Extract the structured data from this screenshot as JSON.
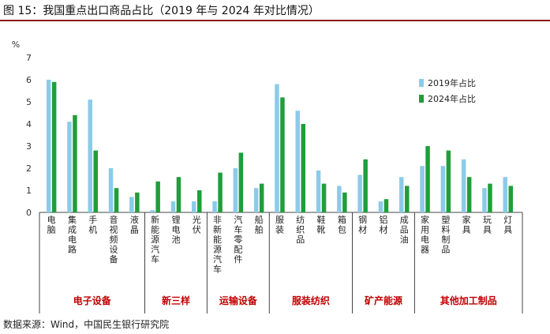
{
  "title": "图 15：我国重点出口商品占比（2019 年与 2024 年对比情况）",
  "source": "数据来源：Wind，中国民生银行研究院",
  "colors": {
    "series_2019": "#8ccbe8",
    "series_2024": "#1f9e3a",
    "group_label": "#c00000",
    "axis": "#444444",
    "title_rule": "#8b1a1a"
  },
  "chart_data": {
    "type": "bar",
    "unit": "%",
    "ylim": [
      0,
      7
    ],
    "yticks": [
      "0",
      "1",
      "2",
      "3",
      "4",
      "5",
      "6",
      "7"
    ],
    "legend_position": "top-right",
    "categories": [
      "电脑",
      "集成电路",
      "手机",
      "音视频设备",
      "液晶",
      "新能源汽车",
      "锂电池",
      "光伏",
      "非新能源汽车",
      "汽车零配件",
      "船舶",
      "服装",
      "纺织品",
      "鞋靴",
      "箱包",
      "钢材",
      "铝材",
      "成品油",
      "家用电器",
      "塑料制品",
      "家具",
      "玩具",
      "灯具"
    ],
    "series": [
      {
        "name": "2019年占比",
        "values": [
          6.0,
          4.1,
          5.1,
          2.0,
          0.7,
          0.1,
          0.5,
          0.5,
          0.5,
          2.0,
          1.1,
          5.8,
          4.6,
          1.9,
          1.2,
          1.7,
          0.5,
          1.6,
          2.1,
          2.1,
          2.4,
          1.1,
          1.6
        ]
      },
      {
        "name": "2024年占比",
        "values": [
          5.9,
          4.4,
          2.8,
          1.1,
          0.9,
          1.4,
          1.6,
          1.0,
          1.8,
          2.7,
          1.3,
          5.2,
          4.0,
          1.3,
          0.9,
          2.4,
          0.6,
          1.2,
          3.0,
          2.8,
          1.6,
          1.3,
          1.2
        ]
      }
    ],
    "groups": [
      {
        "label": "电子设备",
        "count": 5
      },
      {
        "label": "新三样",
        "count": 3
      },
      {
        "label": "运输设备",
        "count": 3
      },
      {
        "label": "服装纺织",
        "count": 4
      },
      {
        "label": "矿产能源",
        "count": 3
      },
      {
        "label": "其他加工制品",
        "count": 5
      }
    ]
  }
}
